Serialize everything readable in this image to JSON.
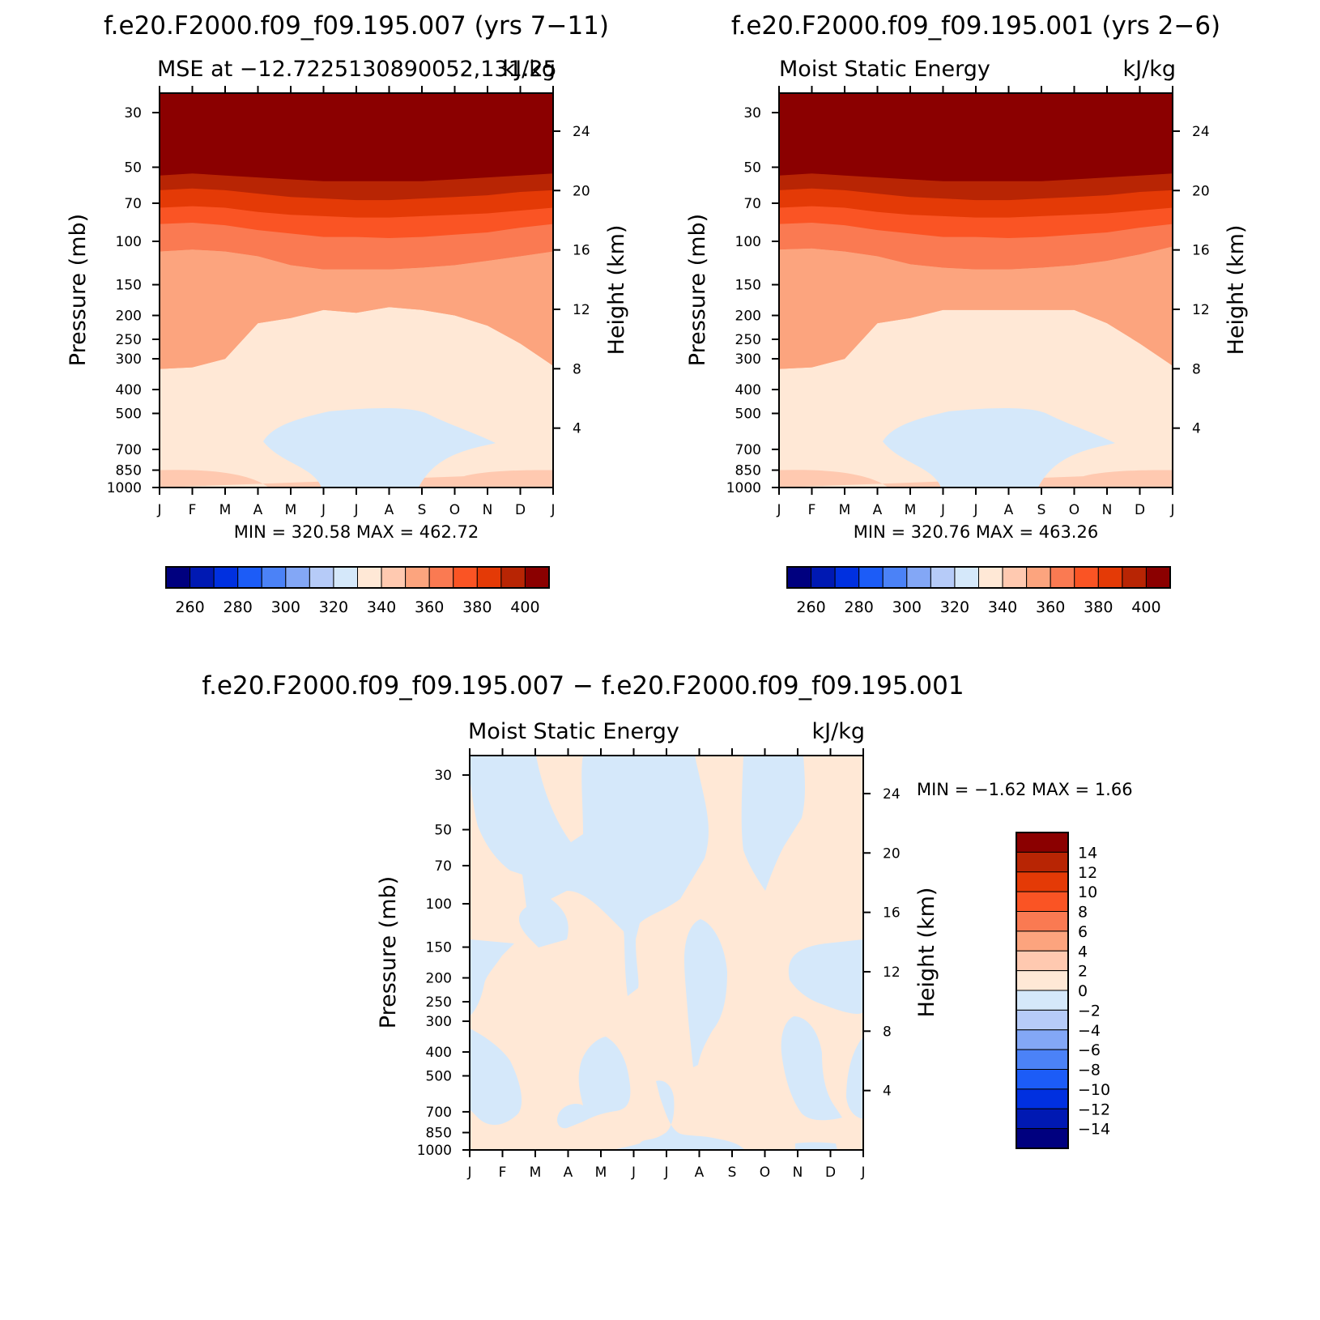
{
  "header": {
    "left_title": "f.e20.F2000.f09_f09.195.007 (yrs 7−11)",
    "right_title": "f.e20.F2000.f09_f09.195.001 (yrs 2−6)",
    "bottom_title": "f.e20.F2000.f09_f09.195.007 − f.e20.F2000.f09_f09.195.001"
  },
  "palette": {
    "mse_levels": [
      250,
      260,
      270,
      280,
      290,
      300,
      310,
      320,
      330,
      340,
      350,
      360,
      370,
      380,
      390,
      400
    ],
    "mse_colors": [
      "#00007f",
      "#0019b3",
      "#0030e0",
      "#1c5cf7",
      "#4b82f7",
      "#83a7f6",
      "#b6cbf8",
      "#d5e8fa",
      "#ffe8d6",
      "#ffc9b0",
      "#fca47e",
      "#fa7a52",
      "#fa5424",
      "#e43a06",
      "#b82504",
      "#8b0000"
    ],
    "diff_levels": [
      -14,
      -12,
      -10,
      -8,
      -6,
      -4,
      -2,
      0,
      2,
      4,
      6,
      8,
      10,
      12,
      14
    ],
    "diff_colors": [
      "#00007f",
      "#0019b3",
      "#0030e0",
      "#1c5cf7",
      "#4b82f7",
      "#83a7f6",
      "#b6cbf8",
      "#d5e8fa",
      "#ffe8d6",
      "#ffc9b0",
      "#fca47e",
      "#fa7a52",
      "#fa5424",
      "#e43a06",
      "#b82504",
      "#8b0000"
    ]
  },
  "chart_data": [
    {
      "id": "left",
      "type": "heatmap",
      "subtitle_left": "MSE at −12.7225130890052,131.25",
      "subtitle_right": "kJ/kg",
      "xlabel": "",
      "ylabel": "Pressure (mb)",
      "ylabel_right": "Height (km)",
      "x_ticks": [
        "J",
        "F",
        "M",
        "A",
        "M",
        "J",
        "J",
        "A",
        "S",
        "O",
        "N",
        "D",
        "J"
      ],
      "y_ticks": [
        30,
        50,
        70,
        100,
        150,
        200,
        250,
        300,
        400,
        500,
        700,
        850,
        1000
      ],
      "y_right_ticks": [
        4,
        8,
        12,
        16,
        20,
        24
      ],
      "ylim": [
        1000,
        25
      ],
      "y_scale": "log",
      "min_max": "MIN = 320.58 MAX = 462.72",
      "colorbar_labels": [
        "260",
        "280",
        "300",
        "320",
        "340",
        "360",
        "380",
        "400"
      ],
      "contours": [
        {
          "level": 330,
          "p": [
            1000,
            1000,
            1000,
            1000,
            1000,
            1000,
            1000,
            1000,
            1000,
            1000,
            1000,
            1000,
            1000
          ]
        },
        {
          "level": 340,
          "p": [
            1000,
            1000,
            1000,
            1000,
            1000,
            1000,
            1000,
            1000,
            1000,
            1000,
            1000,
            1000,
            1000
          ]
        },
        {
          "level": 350,
          "p": [
            330,
            325,
            300,
            215,
            205,
            190,
            195,
            185,
            190,
            200,
            220,
            260,
            320
          ]
        },
        {
          "level": 360,
          "p": [
            110,
            108,
            110,
            115,
            125,
            130,
            130,
            130,
            128,
            125,
            120,
            115,
            110
          ]
        },
        {
          "level": 370,
          "p": [
            85,
            84,
            86,
            90,
            93,
            96,
            96,
            97,
            96,
            94,
            92,
            88,
            85
          ]
        },
        {
          "level": 380,
          "p": [
            73,
            72,
            73,
            76,
            78,
            79,
            80,
            80,
            79,
            78,
            77,
            75,
            73
          ]
        },
        {
          "level": 390,
          "p": [
            62,
            61,
            62,
            64,
            66,
            67,
            68,
            68,
            67,
            66,
            65,
            63,
            62
          ]
        },
        {
          "level": 400,
          "p": [
            54,
            53,
            54,
            55,
            56,
            57,
            57,
            57,
            57,
            56,
            55,
            54,
            53
          ]
        }
      ]
    },
    {
      "id": "right",
      "type": "heatmap",
      "subtitle_left": "Moist Static Energy",
      "subtitle_right": "kJ/kg",
      "xlabel": "",
      "ylabel": "Pressure (mb)",
      "ylabel_right": "Height (km)",
      "x_ticks": [
        "J",
        "F",
        "M",
        "A",
        "M",
        "J",
        "J",
        "A",
        "S",
        "O",
        "N",
        "D",
        "J"
      ],
      "y_ticks": [
        30,
        50,
        70,
        100,
        150,
        200,
        250,
        300,
        400,
        500,
        700,
        850,
        1000
      ],
      "y_right_ticks": [
        4,
        8,
        12,
        16,
        20,
        24
      ],
      "ylim": [
        1000,
        25
      ],
      "y_scale": "log",
      "min_max": "MIN = 320.76 MAX = 463.26",
      "colorbar_labels": [
        "260",
        "280",
        "300",
        "320",
        "340",
        "360",
        "380",
        "400"
      ],
      "contours": [
        {
          "level": 330,
          "p": [
            1000,
            1000,
            1000,
            1000,
            1000,
            1000,
            1000,
            1000,
            1000,
            1000,
            1000,
            1000,
            1000
          ]
        },
        {
          "level": 340,
          "p": [
            1000,
            1000,
            1000,
            1000,
            1000,
            1000,
            1000,
            1000,
            1000,
            1000,
            1000,
            1000,
            1000
          ]
        },
        {
          "level": 350,
          "p": [
            330,
            325,
            300,
            215,
            205,
            190,
            190,
            190,
            190,
            190,
            215,
            260,
            320
          ]
        },
        {
          "level": 360,
          "p": [
            108,
            107,
            110,
            115,
            124,
            128,
            130,
            130,
            128,
            125,
            120,
            113,
            105
          ]
        },
        {
          "level": 370,
          "p": [
            85,
            84,
            86,
            90,
            93,
            96,
            96,
            97,
            96,
            94,
            92,
            88,
            85
          ]
        },
        {
          "level": 380,
          "p": [
            73,
            72,
            73,
            76,
            78,
            79,
            80,
            80,
            79,
            78,
            77,
            75,
            73
          ]
        },
        {
          "level": 390,
          "p": [
            62,
            61,
            62,
            64,
            66,
            67,
            68,
            68,
            67,
            66,
            65,
            63,
            62
          ]
        },
        {
          "level": 400,
          "p": [
            54,
            53,
            54,
            55,
            56,
            57,
            57,
            57,
            57,
            56,
            55,
            54,
            53
          ]
        }
      ]
    },
    {
      "id": "diff",
      "type": "heatmap",
      "subtitle_left": "Moist Static Energy",
      "subtitle_right": "kJ/kg",
      "xlabel": "",
      "ylabel": "Pressure (mb)",
      "ylabel_right": "Height (km)",
      "x_ticks": [
        "J",
        "F",
        "M",
        "A",
        "M",
        "J",
        "J",
        "A",
        "S",
        "O",
        "N",
        "D",
        "J"
      ],
      "y_ticks": [
        30,
        50,
        70,
        100,
        150,
        200,
        250,
        300,
        400,
        500,
        700,
        850,
        1000
      ],
      "y_right_ticks": [
        4,
        8,
        12,
        16,
        20,
        24
      ],
      "ylim": [
        1000,
        25
      ],
      "y_scale": "log",
      "min_max": "MIN = −1.62 MAX = 1.66",
      "colorbar_labels": [
        "14",
        "12",
        "10",
        "8",
        "6",
        "4",
        "2",
        "0",
        "−2",
        "−4",
        "−6",
        "−8",
        "−10",
        "−12",
        "−14"
      ]
    }
  ]
}
